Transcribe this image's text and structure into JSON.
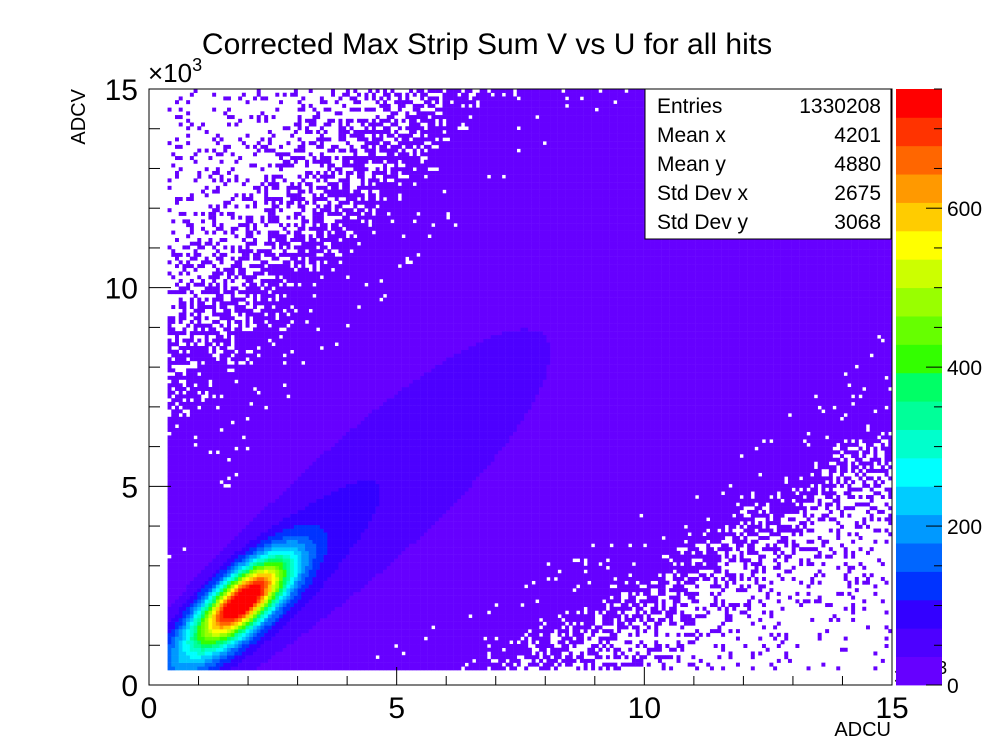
{
  "chart_data": {
    "type": "heatmap",
    "title": "Corrected Max Strip Sum V vs U for all hits",
    "xlabel": "ADCU",
    "ylabel": "ADCV",
    "x_exponent_label": "×10",
    "x_exponent_power": "3",
    "y_exponent_label": "×10",
    "y_exponent_power": "3",
    "xlim": [
      0,
      15000
    ],
    "ylim": [
      0,
      15000
    ],
    "x_ticks": [
      {
        "value": 0,
        "label": "0"
      },
      {
        "value": 5000,
        "label": "5"
      },
      {
        "value": 10000,
        "label": "10"
      },
      {
        "value": 15000,
        "label": "15"
      }
    ],
    "y_ticks": [
      {
        "value": 0,
        "label": "0"
      },
      {
        "value": 5000,
        "label": "5"
      },
      {
        "value": 10000,
        "label": "10"
      },
      {
        "value": 15000,
        "label": "15"
      }
    ],
    "colorbar": {
      "range": [
        0,
        750
      ],
      "ticks": [
        {
          "value": 0,
          "label": "0"
        },
        {
          "value": 200,
          "label": "200"
        },
        {
          "value": 400,
          "label": "400"
        },
        {
          "value": 600,
          "label": "600"
        }
      ],
      "colors": [
        "#6600ff",
        "#4d00ff",
        "#3300ff",
        "#0033ff",
        "#0066ff",
        "#0099ff",
        "#00ccff",
        "#00ffff",
        "#00ffcc",
        "#00ff99",
        "#00ff66",
        "#33ff00",
        "#66ff00",
        "#99ff00",
        "#ccff00",
        "#ffff00",
        "#ffcc00",
        "#ff9900",
        "#ff6600",
        "#ff3300",
        "#ff0000"
      ]
    },
    "grid": false,
    "stats": {
      "rows": [
        {
          "label": "Entries",
          "value": "1330208"
        },
        {
          "label": "Mean x",
          "value": "4201"
        },
        {
          "label": "Mean y",
          "value": "4880"
        },
        {
          "label": "Std Dev x",
          "value": "2675"
        },
        {
          "label": "Std Dev y",
          "value": "3068"
        }
      ]
    },
    "features": {
      "main_band": {
        "x_start": 600,
        "y_start": 500,
        "x_end": 10000,
        "y_end": 12000,
        "peak_x": 1800,
        "peak_y": 2200,
        "peak_count": 720
      },
      "secondary_band": {
        "x_start": 1500,
        "y_start": 1000,
        "x_end": 12000,
        "y_end": 10000
      }
    }
  }
}
